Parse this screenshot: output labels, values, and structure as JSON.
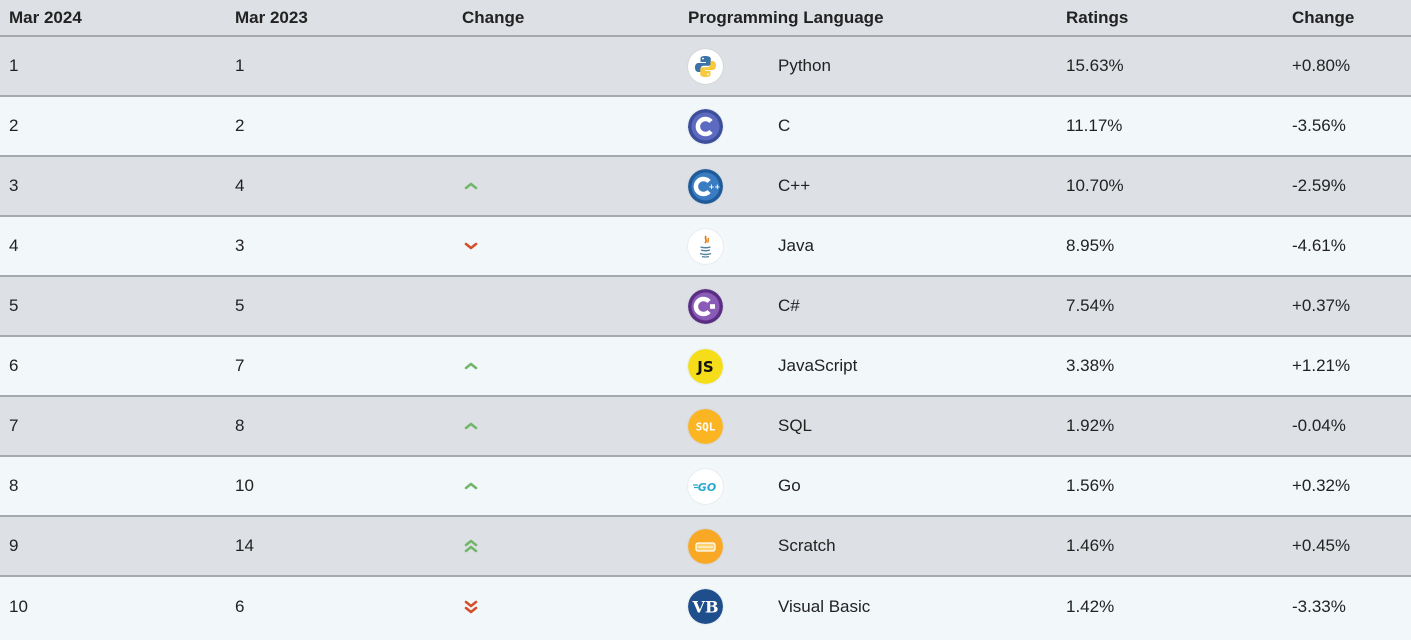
{
  "table": {
    "headers": [
      "Mar 2024",
      "Mar 2023",
      "Change",
      "Programming Language",
      "Ratings",
      "Change"
    ],
    "rows": [
      {
        "rank_2024": "1",
        "rank_2023": "1",
        "trend": "none",
        "trend_icon": "none",
        "language": "Python",
        "logo_icon": "python-logo-icon",
        "rating": "15.63%",
        "change": "+0.80%"
      },
      {
        "rank_2024": "2",
        "rank_2023": "2",
        "trend": "none",
        "trend_icon": "none",
        "language": "C",
        "logo_icon": "c-logo-icon",
        "rating": "11.17%",
        "change": "-3.56%"
      },
      {
        "rank_2024": "3",
        "rank_2023": "4",
        "trend": "up",
        "trend_icon": "chevron-up-icon",
        "language": "C++",
        "logo_icon": "cplusplus-logo-icon",
        "rating": "10.70%",
        "change": "-2.59%"
      },
      {
        "rank_2024": "4",
        "rank_2023": "3",
        "trend": "down",
        "trend_icon": "chevron-down-icon",
        "language": "Java",
        "logo_icon": "java-logo-icon",
        "rating": "8.95%",
        "change": "-4.61%"
      },
      {
        "rank_2024": "5",
        "rank_2023": "5",
        "trend": "none",
        "trend_icon": "none",
        "language": "C#",
        "logo_icon": "csharp-logo-icon",
        "rating": "7.54%",
        "change": "+0.37%"
      },
      {
        "rank_2024": "6",
        "rank_2023": "7",
        "trend": "up",
        "trend_icon": "chevron-up-icon",
        "language": "JavaScript",
        "logo_icon": "javascript-logo-icon",
        "rating": "3.38%",
        "change": "+1.21%"
      },
      {
        "rank_2024": "7",
        "rank_2023": "8",
        "trend": "up",
        "trend_icon": "chevron-up-icon",
        "language": "SQL",
        "logo_icon": "sql-logo-icon",
        "rating": "1.92%",
        "change": "-0.04%"
      },
      {
        "rank_2024": "8",
        "rank_2023": "10",
        "trend": "up",
        "trend_icon": "chevron-up-icon",
        "language": "Go",
        "logo_icon": "go-logo-icon",
        "rating": "1.56%",
        "change": "+0.32%"
      },
      {
        "rank_2024": "9",
        "rank_2023": "14",
        "trend": "up2",
        "trend_icon": "double-chevron-up-icon",
        "language": "Scratch",
        "logo_icon": "scratch-logo-icon",
        "rating": "1.46%",
        "change": "+0.45%"
      },
      {
        "rank_2024": "10",
        "rank_2023": "6",
        "trend": "down2",
        "trend_icon": "double-chevron-down-icon",
        "language": "Visual Basic",
        "logo_icon": "visual-basic-logo-icon",
        "rating": "1.42%",
        "change": "-3.33%"
      }
    ]
  },
  "logo_text": {
    "js": "JS",
    "sql": "SQL",
    "go": "GO",
    "vb": "VB"
  },
  "colors": {
    "up": "#73b66b",
    "down": "#d4502a",
    "row_dark": "#dde1e5",
    "row_light": "#f2f7fa",
    "border": "#a7aaad"
  }
}
